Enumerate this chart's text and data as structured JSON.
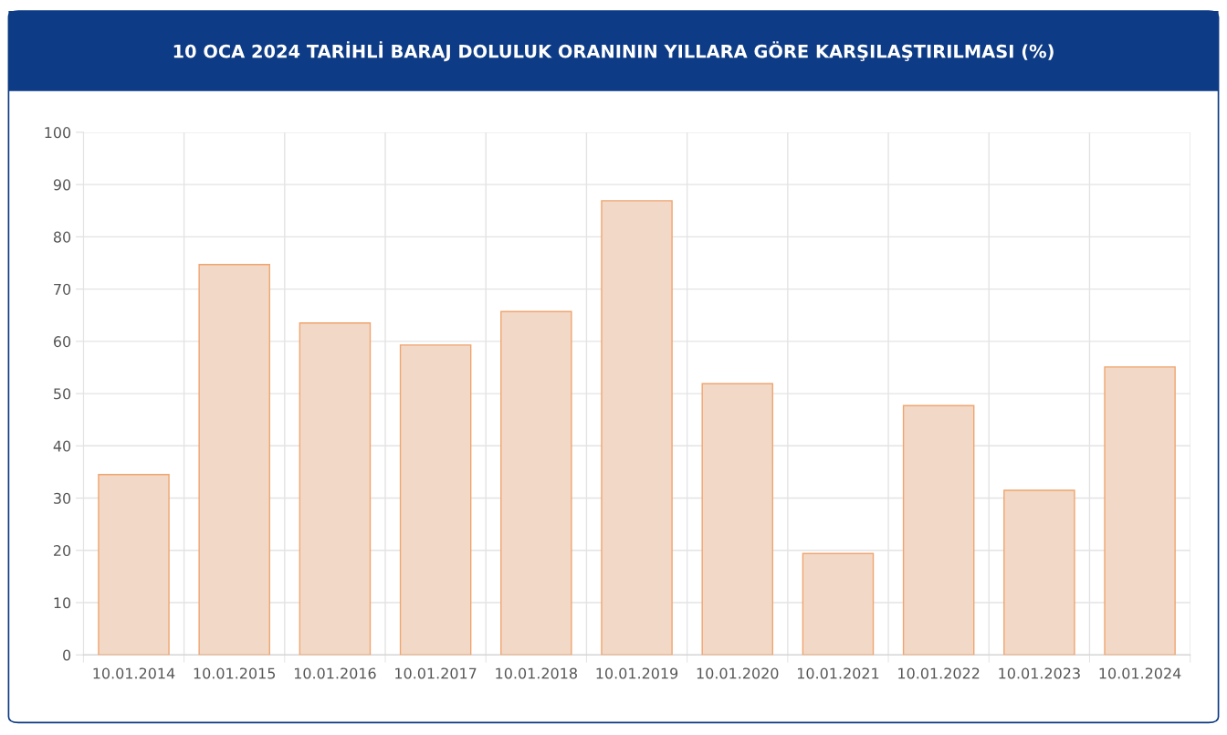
{
  "chart_data": {
    "type": "bar",
    "title": "10 OCA 2024 TARİHLİ BARAJ DOLULUK ORANININ YILLARA GÖRE KARŞILAŞTIRILMASI (%)",
    "categories": [
      "10.01.2014",
      "10.01.2015",
      "10.01.2016",
      "10.01.2017",
      "10.01.2018",
      "10.01.2019",
      "10.01.2020",
      "10.01.2021",
      "10.01.2022",
      "10.01.2023",
      "10.01.2024"
    ],
    "values": [
      34.5,
      74.7,
      63.5,
      59.3,
      65.7,
      86.9,
      51.9,
      19.4,
      47.7,
      31.5,
      55.1
    ],
    "color": "#f2d9c7",
    "ylim": [
      0,
      100
    ],
    "yticks": [
      0,
      10,
      20,
      30,
      40,
      50,
      60,
      70,
      80,
      90,
      100
    ],
    "grid": true
  }
}
